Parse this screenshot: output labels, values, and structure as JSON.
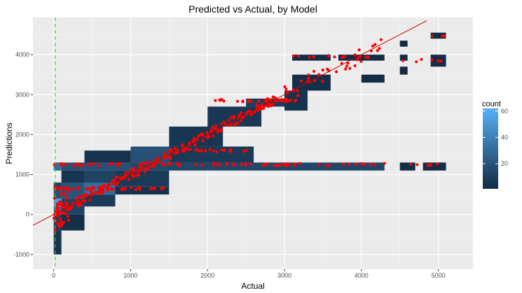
{
  "chart_data": {
    "type": "heatmap",
    "title": "Predicted vs Actual, by Model",
    "xlabel": "Actual",
    "ylabel": "Predictions",
    "xlim": [
      -270,
      5450
    ],
    "ylim": [
      -1370,
      4930
    ],
    "x_ticks": [
      0,
      1000,
      2000,
      3000,
      4000,
      5000
    ],
    "x_tick_labels": [
      "0",
      "1000",
      "2000",
      "3000",
      "4000",
      "5000"
    ],
    "y_ticks": [
      -1000,
      0,
      1000,
      2000,
      3000,
      4000
    ],
    "y_tick_labels": [
      "-1000",
      "0",
      "1000",
      "2000",
      "3000",
      "4000"
    ],
    "grid": true,
    "legend": {
      "title": "count",
      "placement": "right",
      "min": 1,
      "max": 62,
      "ticks": [
        20,
        40,
        60
      ],
      "tick_labels": [
        "20",
        "40",
        "60"
      ],
      "low_color": "#132b43",
      "high_color": "#56b1f7"
    },
    "colors": {
      "panel": "#ebebeb",
      "grid_major": "#ffffff",
      "points": "#ff0000",
      "diagonal": "#cc0000",
      "vline": "#33cc33"
    },
    "vline_x": 20,
    "diagonal_line": {
      "slope": 1,
      "intercept": 0
    },
    "bins": [
      {
        "x": [
          0,
          100
        ],
        "y": [
          -1000,
          -800
        ],
        "count": 4
      },
      {
        "x": [
          0,
          100
        ],
        "y": [
          -800,
          -600
        ],
        "count": 5
      },
      {
        "x": [
          0,
          100
        ],
        "y": [
          -600,
          -400
        ],
        "count": 6
      },
      {
        "x": [
          0,
          100
        ],
        "y": [
          -400,
          -200
        ],
        "count": 7
      },
      {
        "x": [
          0,
          100
        ],
        "y": [
          -200,
          0
        ],
        "count": 10
      },
      {
        "x": [
          0,
          100
        ],
        "y": [
          0,
          200
        ],
        "count": 28
      },
      {
        "x": [
          0,
          100
        ],
        "y": [
          200,
          400
        ],
        "count": 52
      },
      {
        "x": [
          0,
          100
        ],
        "y": [
          400,
          600
        ],
        "count": 18
      },
      {
        "x": [
          0,
          100
        ],
        "y": [
          600,
          800
        ],
        "count": 12
      },
      {
        "x": [
          0,
          100
        ],
        "y": [
          1100,
          1300
        ],
        "count": 30
      },
      {
        "x": [
          100,
          400
        ],
        "y": [
          -400,
          0
        ],
        "count": 3
      },
      {
        "x": [
          100,
          400
        ],
        "y": [
          0,
          400
        ],
        "count": 12
      },
      {
        "x": [
          100,
          400
        ],
        "y": [
          400,
          800
        ],
        "count": 20
      },
      {
        "x": [
          100,
          400
        ],
        "y": [
          800,
          1100
        ],
        "count": 6
      },
      {
        "x": [
          100,
          1000
        ],
        "y": [
          1100,
          1300
        ],
        "count": 18
      },
      {
        "x": [
          400,
          800
        ],
        "y": [
          200,
          500
        ],
        "count": 8
      },
      {
        "x": [
          400,
          800
        ],
        "y": [
          500,
          800
        ],
        "count": 30
      },
      {
        "x": [
          400,
          800
        ],
        "y": [
          800,
          1100
        ],
        "count": 12
      },
      {
        "x": [
          400,
          1000
        ],
        "y": [
          1300,
          1600
        ],
        "count": 4
      },
      {
        "x": [
          800,
          1500
        ],
        "y": [
          500,
          700
        ],
        "count": 5
      },
      {
        "x": [
          800,
          1500
        ],
        "y": [
          700,
          1100
        ],
        "count": 8
      },
      {
        "x": [
          1000,
          4300
        ],
        "y": [
          1100,
          1300
        ],
        "count": 14
      },
      {
        "x": [
          1000,
          1500
        ],
        "y": [
          1300,
          1700
        ],
        "count": 18
      },
      {
        "x": [
          1500,
          2600
        ],
        "y": [
          1300,
          1700
        ],
        "count": 8
      },
      {
        "x": [
          1500,
          2200
        ],
        "y": [
          1700,
          2200
        ],
        "count": 6
      },
      {
        "x": [
          2000,
          2700
        ],
        "y": [
          2200,
          2700
        ],
        "count": 7
      },
      {
        "x": [
          2500,
          3000
        ],
        "y": [
          2700,
          2900
        ],
        "count": 10
      },
      {
        "x": [
          3000,
          3300
        ],
        "y": [
          2600,
          3100
        ],
        "count": 5
      },
      {
        "x": [
          3100,
          3600
        ],
        "y": [
          3100,
          3500
        ],
        "count": 3
      },
      {
        "x": [
          3100,
          3600
        ],
        "y": [
          3850,
          4000
        ],
        "count": 2
      },
      {
        "x": [
          3700,
          4300
        ],
        "y": [
          3850,
          4000
        ],
        "count": 2
      },
      {
        "x": [
          4000,
          4300
        ],
        "y": [
          3300,
          3500
        ],
        "count": 2
      },
      {
        "x": [
          4500,
          4700
        ],
        "y": [
          1100,
          1300
        ],
        "count": 2
      },
      {
        "x": [
          4500,
          4600
        ],
        "y": [
          4200,
          4350
        ],
        "count": 1
      },
      {
        "x": [
          4500,
          4600
        ],
        "y": [
          3500,
          3700
        ],
        "count": 1
      },
      {
        "x": [
          4500,
          4600
        ],
        "y": [
          3850,
          4000
        ],
        "count": 1
      },
      {
        "x": [
          4800,
          5100
        ],
        "y": [
          1100,
          1300
        ],
        "count": 2
      },
      {
        "x": [
          4900,
          5100
        ],
        "y": [
          4400,
          4550
        ],
        "count": 1
      },
      {
        "x": [
          4900,
          5100
        ],
        "y": [
          3700,
          4000
        ],
        "count": 2
      }
    ],
    "point_clusters": [
      {
        "kind": "linear",
        "x0": 0,
        "x1": 2900,
        "scatter": 120,
        "n": 220,
        "seed": 1
      },
      {
        "kind": "band",
        "x0": 0,
        "x1": 4300,
        "y": 1250,
        "n": 80,
        "seed": 2
      },
      {
        "kind": "band",
        "x0": 1500,
        "x1": 2600,
        "y": 1600,
        "n": 25,
        "seed": 3
      },
      {
        "kind": "band",
        "x0": 0,
        "x1": 1500,
        "y": 650,
        "n": 50,
        "seed": 4
      },
      {
        "kind": "band",
        "x0": 2000,
        "x1": 3200,
        "y": 2850,
        "n": 30,
        "seed": 5
      },
      {
        "kind": "linear",
        "x0": 3000,
        "x1": 4300,
        "scatter": 200,
        "n": 40,
        "seed": 6
      },
      {
        "kind": "linear",
        "x0": 0,
        "x1": 200,
        "scatter": 450,
        "n": 40,
        "seed": 7
      },
      {
        "kind": "band",
        "x0": 3100,
        "x1": 4300,
        "y": 3950,
        "n": 14,
        "seed": 8
      },
      {
        "kind": "band",
        "x0": 4500,
        "x1": 5100,
        "y": 1250,
        "n": 6,
        "seed": 9
      },
      {
        "kind": "band",
        "x0": 4500,
        "x1": 5100,
        "y": 3850,
        "n": 6,
        "seed": 10
      },
      {
        "kind": "band",
        "x0": 4900,
        "x1": 5100,
        "y": 4480,
        "n": 3,
        "seed": 11
      }
    ]
  }
}
